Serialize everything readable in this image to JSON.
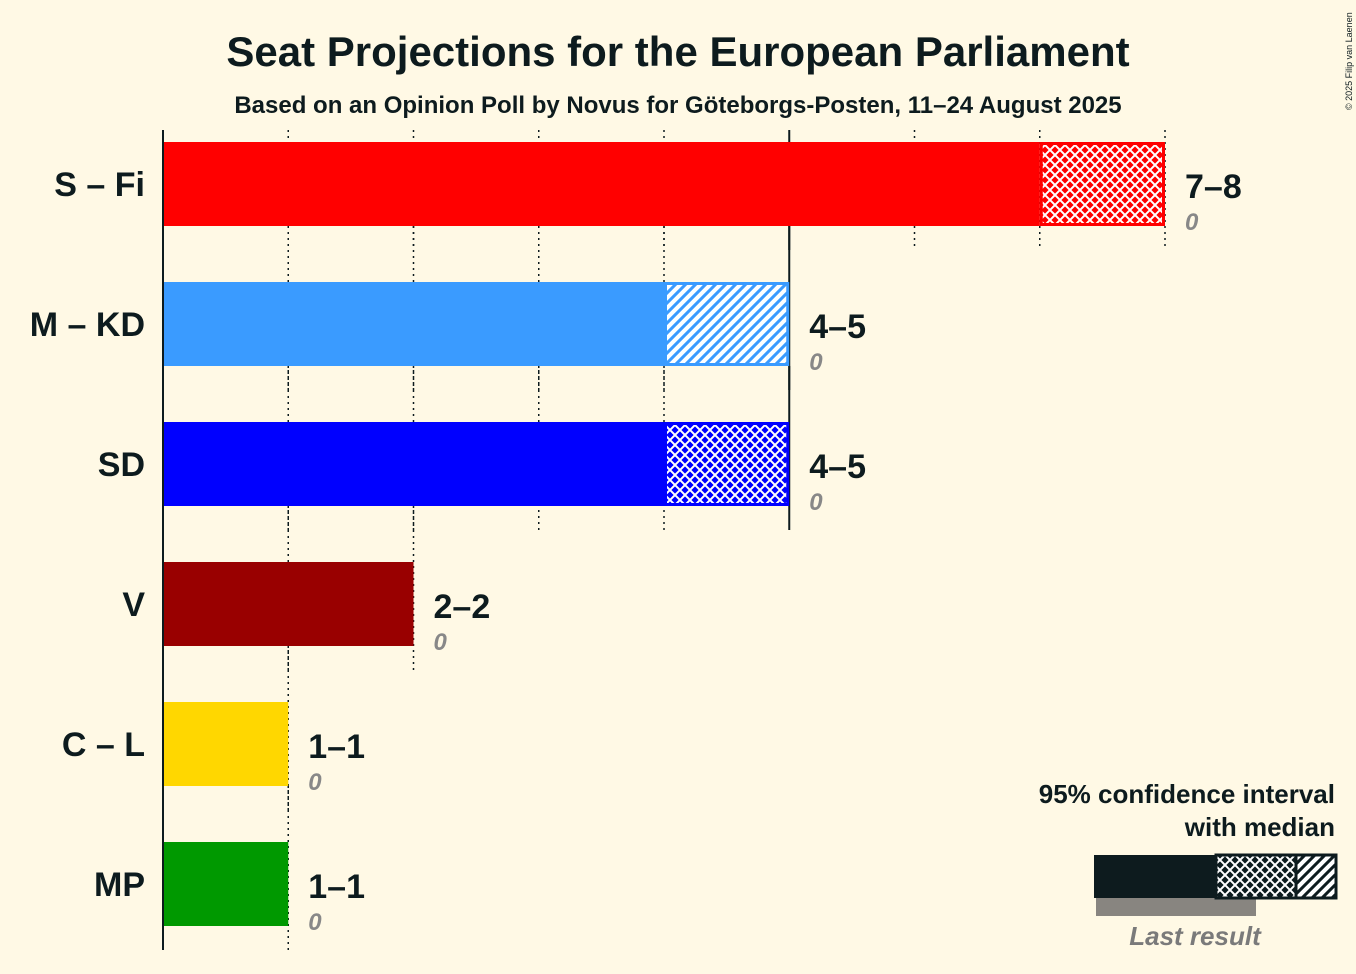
{
  "title": "Seat Projections for the European Parliament",
  "subtitle": "Based on an Opinion Poll by Novus for Göteborgs-Posten, 11–24 August 2025",
  "copyright": "© 2025 Filip van Laenen",
  "legend": {
    "line1": "95% confidence interval",
    "line2": "with median",
    "last_result": "Last result"
  },
  "chart_data": {
    "type": "bar",
    "orientation": "horizontal",
    "x_range": [
      0,
      8
    ],
    "categories": [
      "S – Fi",
      "M – KD",
      "SD",
      "V",
      "C – L",
      "MP"
    ],
    "series": [
      {
        "party": "S – Fi",
        "low": 7,
        "high": 8,
        "median": 8,
        "last_result": 0,
        "range_label": "7–8",
        "last_label": "0",
        "color": "#FF0000",
        "pattern": "cross"
      },
      {
        "party": "M – KD",
        "low": 4,
        "high": 5,
        "median": 4,
        "last_result": 0,
        "range_label": "4–5",
        "last_label": "0",
        "color": "#3A9BFF",
        "pattern": "hatch"
      },
      {
        "party": "SD",
        "low": 4,
        "high": 5,
        "median": 5,
        "last_result": 0,
        "range_label": "4–5",
        "last_label": "0",
        "color": "#0000FF",
        "pattern": "cross"
      },
      {
        "party": "V",
        "low": 2,
        "high": 2,
        "median": 2,
        "last_result": 0,
        "range_label": "2–2",
        "last_label": "0",
        "color": "#990000",
        "pattern": "none"
      },
      {
        "party": "C – L",
        "low": 1,
        "high": 1,
        "median": 1,
        "last_result": 0,
        "range_label": "1–1",
        "last_label": "0",
        "color": "#FFD700",
        "pattern": "none"
      },
      {
        "party": "MP",
        "low": 1,
        "high": 1,
        "median": 1,
        "last_result": 0,
        "range_label": "1–1",
        "last_label": "0",
        "color": "#009900",
        "pattern": "none"
      }
    ]
  }
}
